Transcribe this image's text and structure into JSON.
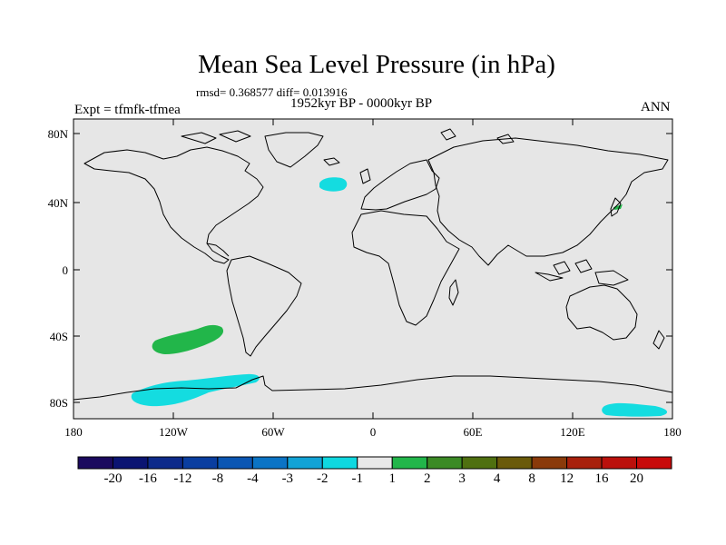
{
  "title": "Mean Sea Level Pressure (in hPa)",
  "stats": "rmsd= 0.368577 diff= 0.013916",
  "period": "1952kyr BP - 0000kyr BP",
  "experiment": "Expt = tfmfk-tfmea",
  "season": "ANN",
  "axes": {
    "lat_labels": [
      "80N",
      "40N",
      "0",
      "40S",
      "80S"
    ],
    "lon_labels": [
      "180",
      "120W",
      "60W",
      "0",
      "60E",
      "120E",
      "180"
    ]
  },
  "colorbar": {
    "labels": [
      "-20",
      "-16",
      "-12",
      "-8",
      "-4",
      "-3",
      "-2",
      "-1",
      "1",
      "2",
      "3",
      "4",
      "8",
      "12",
      "16",
      "20"
    ],
    "colors": [
      "#1b0a5e",
      "#0b1472",
      "#0d2a8a",
      "#0a3ea0",
      "#0b56b3",
      "#0b74c5",
      "#12a3d6",
      "#0fd8e0",
      "#e8e8e8",
      "#22b64a",
      "#3b8a25",
      "#4f7010",
      "#6a5a0a",
      "#8a3a0a",
      "#a8200c",
      "#bb100c",
      "#c80a0a"
    ]
  },
  "colors": {
    "map_bg": "#e6e6e6",
    "positive_anomaly": "#22b64a",
    "negative_anomaly": "#14dce0"
  },
  "anomalies": [
    {
      "name": "north-atlantic",
      "sign": "negative",
      "range": "-1 to -2",
      "lon": -25,
      "lat": 46
    },
    {
      "name": "south-pacific",
      "sign": "positive",
      "range": "1 to 2",
      "lon": -105,
      "lat": -40
    },
    {
      "name": "antarctic-pacific",
      "sign": "negative",
      "range": "-1 to -2",
      "lon": -100,
      "lat": -72
    },
    {
      "name": "antarctic-tasman",
      "sign": "negative",
      "range": "-1 to -2",
      "lon": 160,
      "lat": -80
    },
    {
      "name": "japan",
      "sign": "positive",
      "range": "1 to 2",
      "lon": 143,
      "lat": 36
    }
  ]
}
